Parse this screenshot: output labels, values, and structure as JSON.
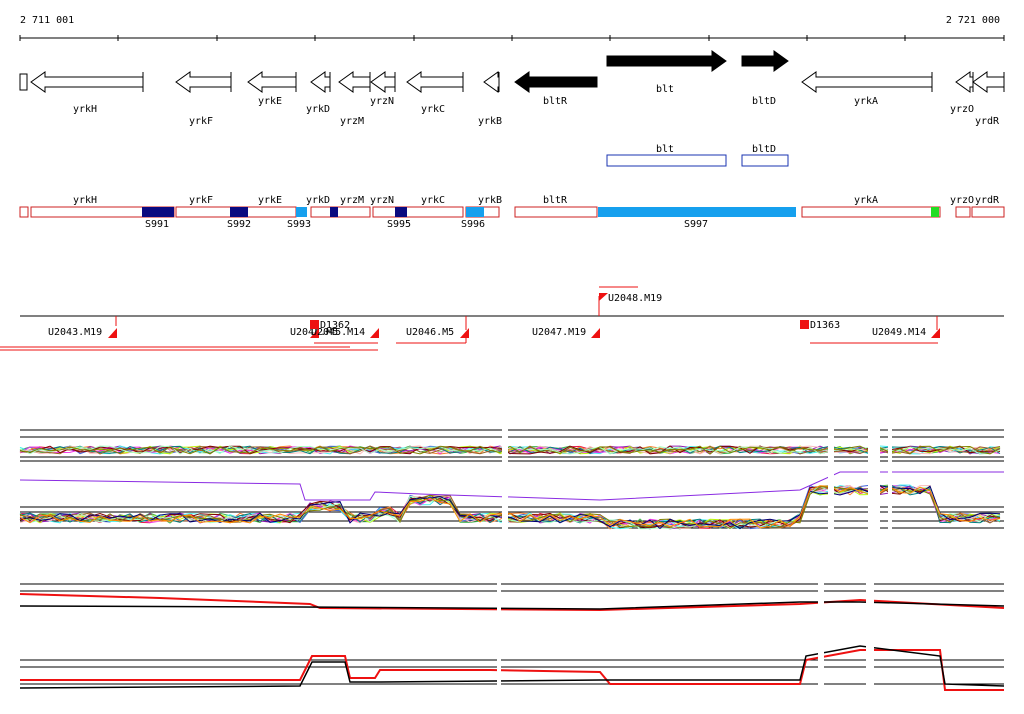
{
  "ruler": {
    "start_label": "2 711 001",
    "end_label": "2 721 000"
  },
  "genes": [
    {
      "name": "yrkH",
      "strand": "-",
      "filled": false
    },
    {
      "name": "yrkF",
      "strand": "-",
      "filled": false
    },
    {
      "name": "yrkE",
      "strand": "-",
      "filled": false
    },
    {
      "name": "yrkD",
      "strand": "-",
      "filled": false
    },
    {
      "name": "yrzM",
      "strand": "-",
      "filled": false
    },
    {
      "name": "yrzN",
      "strand": "-",
      "filled": false
    },
    {
      "name": "yrkC",
      "strand": "-",
      "filled": false
    },
    {
      "name": "yrkB",
      "strand": "-",
      "filled": false
    },
    {
      "name": "bltR",
      "strand": "-",
      "filled": true
    },
    {
      "name": "blt",
      "strand": "+",
      "filled": true
    },
    {
      "name": "bltD",
      "strand": "+",
      "filled": true
    },
    {
      "name": "yrkA",
      "strand": "-",
      "filled": false
    },
    {
      "name": "yrzO",
      "strand": "-",
      "filled": false
    },
    {
      "name": "yrdR",
      "strand": "-",
      "filled": false
    }
  ],
  "highlighted_genes": [
    "blt",
    "bltD"
  ],
  "segment_track": {
    "labels": [
      "yrkH",
      "yrkF",
      "yrkE",
      "yrkD",
      "yrzM",
      "yrzN",
      "yrkC",
      "yrkB",
      "bltR",
      "yrkA",
      "yrzO",
      "yrdR"
    ],
    "sites": [
      "S991",
      "S992",
      "S993",
      "S995",
      "S996",
      "S997"
    ]
  },
  "transcription_units": [
    "U2043.M19",
    "U2044.M5",
    "U2045.M14",
    "U2046.M5",
    "U2047.M19",
    "U2048.M19",
    "U2049.M14"
  ],
  "motifs": [
    "D1362",
    "D1363"
  ],
  "colors": {
    "gene_fill": "#000000",
    "outline_blue": "#1a33b0",
    "segment_red": "#cc2222",
    "dark_blue": "#0a0a80",
    "light_blue": "#16a0ee",
    "green": "#22dd22",
    "red": "#ee1111"
  }
}
